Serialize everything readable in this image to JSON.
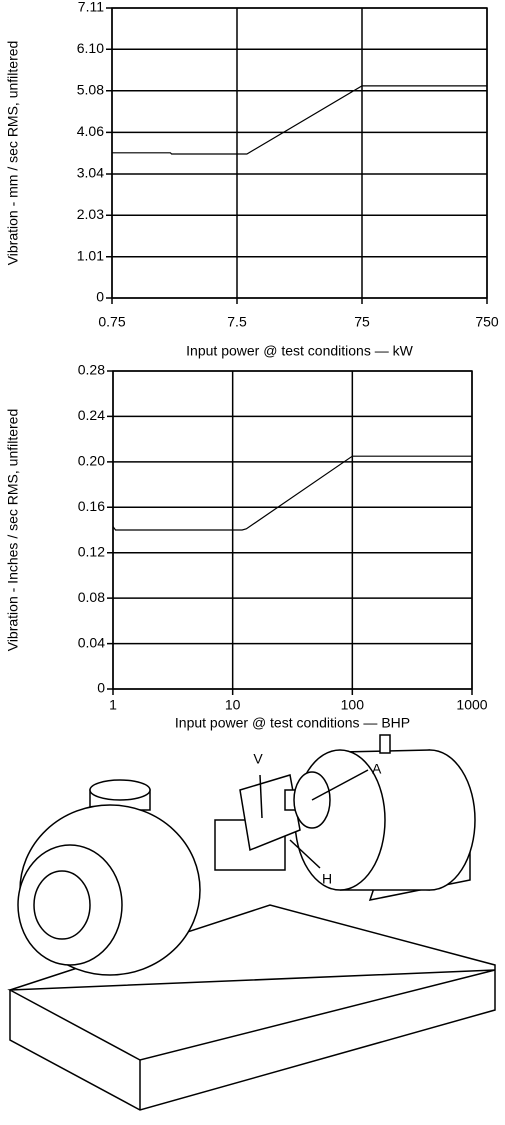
{
  "chart_data": [
    {
      "type": "line",
      "xscale": "log",
      "grid": true,
      "y_label": "Vibration - mm / sec RMS, unfiltered",
      "x_label": "Input power @ test conditions — kW",
      "xlim": [
        0.75,
        750
      ],
      "xticks": [
        0.75,
        7.5,
        75,
        750
      ],
      "ylim": [
        0,
        7.11
      ],
      "yticks": [
        0,
        1.01,
        2.03,
        3.04,
        4.06,
        {
          "value": 5.08,
          "label": "5.08"
        },
        {
          "value": 6.1,
          "label": "6.10"
        },
        7.11
      ],
      "x": [
        0.75,
        2.2,
        2.25,
        9,
        75,
        750
      ],
      "values": [
        3.56,
        3.56,
        3.53,
        3.53,
        5.2,
        5.2
      ],
      "color": "#000000"
    },
    {
      "type": "line",
      "xscale": "log",
      "grid": true,
      "y_label": "Vibration - Inches / sec RMS, unfiltered",
      "x_label": "Input power @ test conditions — BHP",
      "xlim": [
        1,
        1000
      ],
      "xticks": [
        1,
        10,
        100,
        1000
      ],
      "ylim": [
        0,
        0.28
      ],
      "yticks": [
        0,
        0.04,
        0.08,
        0.12,
        0.16,
        {
          "value": 0.2,
          "label": "0.20"
        },
        0.24,
        0.28
      ],
      "x": [
        1,
        1.05,
        12,
        13,
        100,
        1000
      ],
      "values": [
        0.143,
        0.14,
        0.14,
        0.141,
        0.205,
        0.205
      ],
      "color": "#000000"
    }
  ],
  "illustration": {
    "labels": [
      "V",
      "A",
      "H"
    ]
  }
}
